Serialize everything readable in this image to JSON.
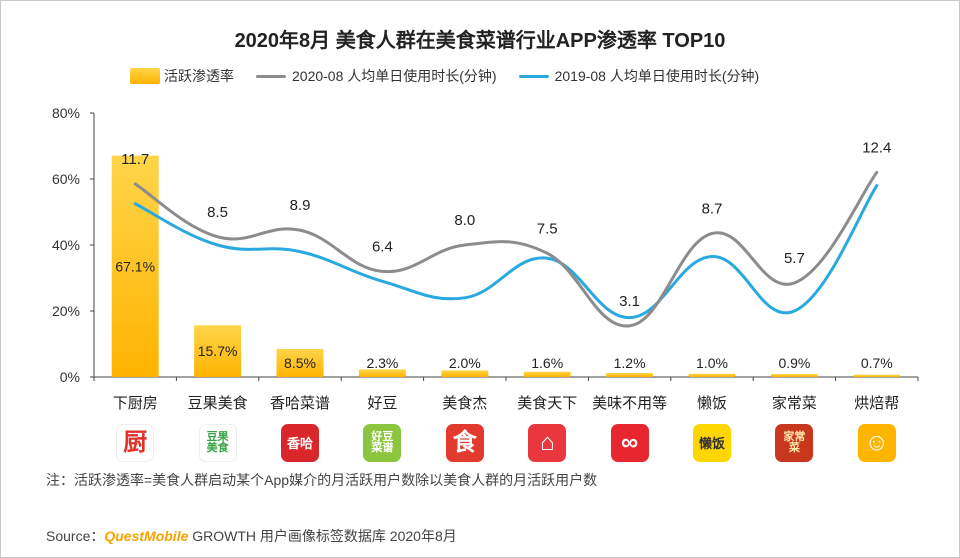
{
  "title": "2020年8月 美食人群在美食菜谱行业APP渗透率 TOP10",
  "legend": {
    "bar": "活跃渗透率",
    "line2020": "2020-08 人均单日使用时长(分钟)",
    "line2019": "2019-08 人均单日使用时长(分钟)"
  },
  "colors": {
    "bar_top": "#ffd54a",
    "bar_bottom": "#ffb300",
    "line2020": "#8c8c8c",
    "line2019": "#29a9e0",
    "brand": "#f5a300"
  },
  "chart_data": {
    "type": "bar",
    "title": "2020年8月 美食人群在美食菜谱行业APP渗透率 TOP10",
    "categories": [
      "下厨房",
      "豆果美食",
      "香哈菜谱",
      "好豆",
      "美食杰",
      "美食天下",
      "美味不用等",
      "懒饭",
      "家常菜",
      "烘焙帮"
    ],
    "ylim": [
      0,
      80
    ],
    "yticks": [
      "0%",
      "20%",
      "40%",
      "60%",
      "80%"
    ],
    "legend_position": "top",
    "grid": false,
    "series": [
      {
        "name": "活跃渗透率",
        "kind": "bar",
        "values": [
          67.1,
          15.7,
          8.5,
          2.3,
          2.0,
          1.6,
          1.2,
          1.0,
          0.9,
          0.7
        ],
        "labels": [
          "67.1%",
          "15.7%",
          "8.5%",
          "2.3%",
          "2.0%",
          "1.6%",
          "1.2%",
          "1.0%",
          "0.9%",
          "0.7%"
        ]
      },
      {
        "name": "2020-08 人均单日使用时长(分钟)",
        "kind": "line",
        "values": [
          11.7,
          8.5,
          8.9,
          6.4,
          8.0,
          7.5,
          3.1,
          8.7,
          5.7,
          12.4
        ],
        "labels": [
          "11.7",
          "8.5",
          "8.9",
          "6.4",
          "8.0",
          "7.5",
          "3.1",
          "8.7",
          "5.7",
          "12.4"
        ]
      },
      {
        "name": "2019-08 人均单日使用时长(分钟)",
        "kind": "line",
        "values": [
          10.5,
          8.0,
          7.6,
          5.8,
          4.8,
          7.2,
          3.6,
          7.3,
          4.0,
          11.6
        ]
      }
    ]
  },
  "icons": [
    {
      "name": "xiachufang-icon",
      "text": "厨",
      "bg": "#ffffff",
      "fg": "#e0322b",
      "border": "#eeeeee"
    },
    {
      "name": "douguo-icon",
      "text": "豆果\n美食",
      "bg": "#ffffff",
      "fg": "#3aa44a",
      "border": "#eeeeee"
    },
    {
      "name": "xiangha-icon",
      "text": "香哈",
      "bg": "#d8262b",
      "fg": "#ffffff",
      "border": "#d8262b"
    },
    {
      "name": "haodou-icon",
      "text": "好豆\n菜谱",
      "bg": "#8cc63f",
      "fg": "#ffffff",
      "border": "#8cc63f"
    },
    {
      "name": "meishij-icon",
      "text": "食",
      "bg": "#e23a2f",
      "fg": "#ffffff",
      "border": "#e23a2f"
    },
    {
      "name": "meishichina-icon",
      "text": "⌂",
      "bg": "#e8373d",
      "fg": "#ffffff",
      "border": "#e8373d"
    },
    {
      "name": "meiwei-icon",
      "text": "∞",
      "bg": "#e8262f",
      "fg": "#ffffff",
      "border": "#e8262f"
    },
    {
      "name": "lanfan-icon",
      "text": "懒饭",
      "bg": "#ffd600",
      "fg": "#333333",
      "border": "#ffd600"
    },
    {
      "name": "jiachangcai-icon",
      "text": "家常\n菜",
      "bg": "#c9371f",
      "fg": "#ffe7a8",
      "border": "#c9371f"
    },
    {
      "name": "hongbeibang-icon",
      "text": "☺",
      "bg": "#ffb400",
      "fg": "#ffffff",
      "border": "#ffb400"
    }
  ],
  "footnote": "注：活跃渗透率=美食人群启动某个App媒介的月活跃用户数除以美食人群的月活跃用户数",
  "source": {
    "prefix": "Source：",
    "brand": "QuestMobile",
    "suffix": " GROWTH 用户画像标签数据库 2020年8月"
  }
}
